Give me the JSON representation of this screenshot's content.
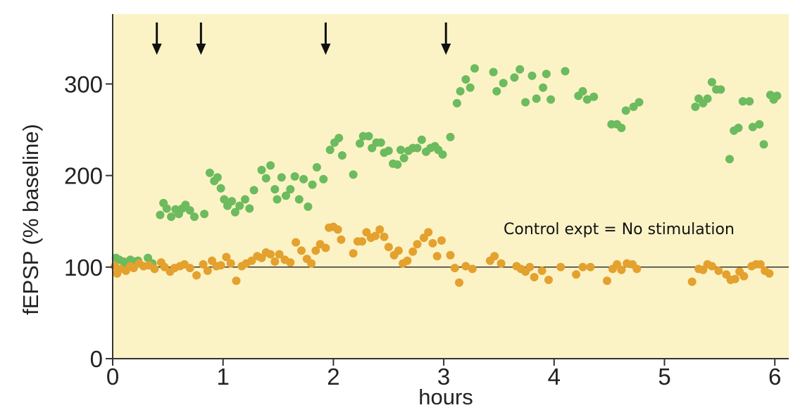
{
  "chart_data": {
    "type": "scatter",
    "title": "",
    "xlabel": "hours",
    "ylabel": "fEPSP (% baseline)",
    "xlim": [
      0,
      6.15
    ],
    "ylim": [
      0,
      370
    ],
    "x_ticks": [
      0,
      1,
      2,
      3,
      4,
      5,
      6
    ],
    "x_tick_labels": [
      "0",
      "1",
      "2",
      "3",
      "4",
      "5",
      "6"
    ],
    "y_ticks": [
      0,
      100,
      200,
      300
    ],
    "y_tick_labels": [
      "0",
      "100",
      "200",
      "300"
    ],
    "baseline_reference": 100,
    "stimulation_times": [
      0.4,
      0.8,
      1.93,
      3.02
    ],
    "annotation": "Control expt = No stimulation",
    "grid": false,
    "colors": {
      "plot_background": "#fbf3c6",
      "stimulated": "#6cbb5e",
      "control": "#e4a12e",
      "axis": "#333333"
    },
    "series": [
      {
        "key": "stimulated",
        "color": "#6cbb5e",
        "points": [
          [
            0.03,
            110
          ],
          [
            0.06,
            108
          ],
          [
            0.1,
            106
          ],
          [
            0.13,
            100
          ],
          [
            0.16,
            108
          ],
          [
            0.2,
            106
          ],
          [
            0.23,
            107
          ],
          [
            0.28,
            101
          ],
          [
            0.32,
            110
          ],
          [
            0.36,
            104
          ],
          [
            0.43,
            157
          ],
          [
            0.46,
            170
          ],
          [
            0.49,
            164
          ],
          [
            0.53,
            155
          ],
          [
            0.57,
            163
          ],
          [
            0.6,
            158
          ],
          [
            0.63,
            164
          ],
          [
            0.66,
            168
          ],
          [
            0.7,
            162
          ],
          [
            0.74,
            155
          ],
          [
            0.83,
            158
          ],
          [
            0.88,
            203
          ],
          [
            0.92,
            194
          ],
          [
            0.95,
            198
          ],
          [
            0.98,
            186
          ],
          [
            1.01,
            174
          ],
          [
            1.04,
            167
          ],
          [
            1.08,
            172
          ],
          [
            1.11,
            160
          ],
          [
            1.15,
            167
          ],
          [
            1.2,
            174
          ],
          [
            1.24,
            164
          ],
          [
            1.28,
            184
          ],
          [
            1.35,
            206
          ],
          [
            1.39,
            197
          ],
          [
            1.43,
            211
          ],
          [
            1.47,
            185
          ],
          [
            1.49,
            174
          ],
          [
            1.53,
            198
          ],
          [
            1.57,
            178
          ],
          [
            1.61,
            185
          ],
          [
            1.65,
            199
          ],
          [
            1.69,
            174
          ],
          [
            1.73,
            196
          ],
          [
            1.77,
            166
          ],
          [
            1.81,
            190
          ],
          [
            1.85,
            209
          ],
          [
            1.91,
            196
          ],
          [
            1.97,
            228
          ],
          [
            2.01,
            236
          ],
          [
            2.05,
            241
          ],
          [
            2.08,
            222
          ],
          [
            2.18,
            201
          ],
          [
            2.24,
            235
          ],
          [
            2.27,
            243
          ],
          [
            2.32,
            243
          ],
          [
            2.35,
            230
          ],
          [
            2.39,
            236
          ],
          [
            2.43,
            236
          ],
          [
            2.46,
            225
          ],
          [
            2.5,
            227
          ],
          [
            2.54,
            213
          ],
          [
            2.58,
            212
          ],
          [
            2.61,
            228
          ],
          [
            2.64,
            219
          ],
          [
            2.68,
            227
          ],
          [
            2.72,
            230
          ],
          [
            2.76,
            230
          ],
          [
            2.8,
            239
          ],
          [
            2.84,
            226
          ],
          [
            2.88,
            230
          ],
          [
            2.92,
            232
          ],
          [
            2.95,
            228
          ],
          [
            2.99,
            223
          ],
          [
            3.06,
            242
          ],
          [
            3.12,
            279
          ],
          [
            3.15,
            292
          ],
          [
            3.2,
            305
          ],
          [
            3.24,
            296
          ],
          [
            3.28,
            317
          ],
          [
            3.45,
            313
          ],
          [
            3.48,
            292
          ],
          [
            3.54,
            301
          ],
          [
            3.64,
            307
          ],
          [
            3.69,
            316
          ],
          [
            3.74,
            280
          ],
          [
            3.8,
            309
          ],
          [
            3.84,
            284
          ],
          [
            3.9,
            296
          ],
          [
            3.93,
            311
          ],
          [
            3.97,
            283
          ],
          [
            4.1,
            314
          ],
          [
            4.22,
            287
          ],
          [
            4.26,
            292
          ],
          [
            4.3,
            283
          ],
          [
            4.36,
            286
          ],
          [
            4.52,
            256
          ],
          [
            4.57,
            256
          ],
          [
            4.61,
            252
          ],
          [
            4.65,
            271
          ],
          [
            4.72,
            275
          ],
          [
            4.77,
            280
          ],
          [
            5.28,
            275
          ],
          [
            5.31,
            284
          ],
          [
            5.35,
            279
          ],
          [
            5.39,
            284
          ],
          [
            5.43,
            302
          ],
          [
            5.47,
            294
          ],
          [
            5.51,
            294
          ],
          [
            5.59,
            218
          ],
          [
            5.63,
            249
          ],
          [
            5.67,
            252
          ],
          [
            5.71,
            281
          ],
          [
            5.77,
            281
          ],
          [
            5.8,
            253
          ],
          [
            5.86,
            256
          ],
          [
            5.9,
            234
          ],
          [
            5.96,
            288
          ],
          [
            5.99,
            283
          ],
          [
            6.02,
            287
          ]
        ]
      },
      {
        "key": "control",
        "color": "#e4a12e",
        "points": [
          [
            0.02,
            101
          ],
          [
            0.04,
            93
          ],
          [
            0.07,
            98
          ],
          [
            0.12,
            96
          ],
          [
            0.16,
            101
          ],
          [
            0.19,
            99
          ],
          [
            0.24,
            104
          ],
          [
            0.28,
            101
          ],
          [
            0.33,
            102
          ],
          [
            0.38,
            98
          ],
          [
            0.44,
            105
          ],
          [
            0.47,
            100
          ],
          [
            0.52,
            95
          ],
          [
            0.56,
            99
          ],
          [
            0.61,
            101
          ],
          [
            0.65,
            103
          ],
          [
            0.7,
            99
          ],
          [
            0.76,
            91
          ],
          [
            0.82,
            103
          ],
          [
            0.86,
            96
          ],
          [
            0.9,
            107
          ],
          [
            0.94,
            101
          ],
          [
            0.98,
            102
          ],
          [
            1.03,
            111
          ],
          [
            1.07,
            104
          ],
          [
            1.12,
            85
          ],
          [
            1.17,
            101
          ],
          [
            1.21,
            104
          ],
          [
            1.26,
            107
          ],
          [
            1.31,
            112
          ],
          [
            1.35,
            110
          ],
          [
            1.39,
            116
          ],
          [
            1.43,
            114
          ],
          [
            1.47,
            106
          ],
          [
            1.51,
            114
          ],
          [
            1.56,
            108
          ],
          [
            1.61,
            105
          ],
          [
            1.66,
            127
          ],
          [
            1.71,
            118
          ],
          [
            1.76,
            109
          ],
          [
            1.8,
            104
          ],
          [
            1.84,
            118
          ],
          [
            1.88,
            125
          ],
          [
            1.93,
            121
          ],
          [
            1.96,
            143
          ],
          [
            2.0,
            144
          ],
          [
            2.04,
            141
          ],
          [
            2.07,
            130
          ],
          [
            2.18,
            115
          ],
          [
            2.22,
            128
          ],
          [
            2.26,
            128
          ],
          [
            2.3,
            138
          ],
          [
            2.34,
            132
          ],
          [
            2.38,
            134
          ],
          [
            2.42,
            141
          ],
          [
            2.46,
            133
          ],
          [
            2.5,
            122
          ],
          [
            2.55,
            113
          ],
          [
            2.59,
            118
          ],
          [
            2.63,
            104
          ],
          [
            2.67,
            107
          ],
          [
            2.72,
            117
          ],
          [
            2.76,
            125
          ],
          [
            2.82,
            132
          ],
          [
            2.86,
            138
          ],
          [
            2.9,
            126
          ],
          [
            2.94,
            112
          ],
          [
            2.98,
            129
          ],
          [
            3.06,
            113
          ],
          [
            3.1,
            99
          ],
          [
            3.14,
            83
          ],
          [
            3.2,
            101
          ],
          [
            3.26,
            98
          ],
          [
            3.42,
            107
          ],
          [
            3.46,
            112
          ],
          [
            3.52,
            104
          ],
          [
            3.66,
            101
          ],
          [
            3.7,
            98
          ],
          [
            3.74,
            95
          ],
          [
            3.78,
            100
          ],
          [
            3.82,
            89
          ],
          [
            3.89,
            96
          ],
          [
            3.95,
            86
          ],
          [
            4.06,
            100
          ],
          [
            4.2,
            92
          ],
          [
            4.26,
            100
          ],
          [
            4.33,
            100
          ],
          [
            4.48,
            85
          ],
          [
            4.53,
            98
          ],
          [
            4.57,
            103
          ],
          [
            4.61,
            97
          ],
          [
            4.66,
            104
          ],
          [
            4.71,
            103
          ],
          [
            4.75,
            98
          ],
          [
            5.25,
            84
          ],
          [
            5.31,
            98
          ],
          [
            5.35,
            97
          ],
          [
            5.39,
            103
          ],
          [
            5.43,
            101
          ],
          [
            5.49,
            96
          ],
          [
            5.56,
            92
          ],
          [
            5.6,
            86
          ],
          [
            5.64,
            87
          ],
          [
            5.68,
            95
          ],
          [
            5.72,
            90
          ],
          [
            5.79,
            101
          ],
          [
            5.83,
            103
          ],
          [
            5.87,
            103
          ],
          [
            5.91,
            96
          ],
          [
            5.95,
            93
          ]
        ]
      }
    ]
  }
}
